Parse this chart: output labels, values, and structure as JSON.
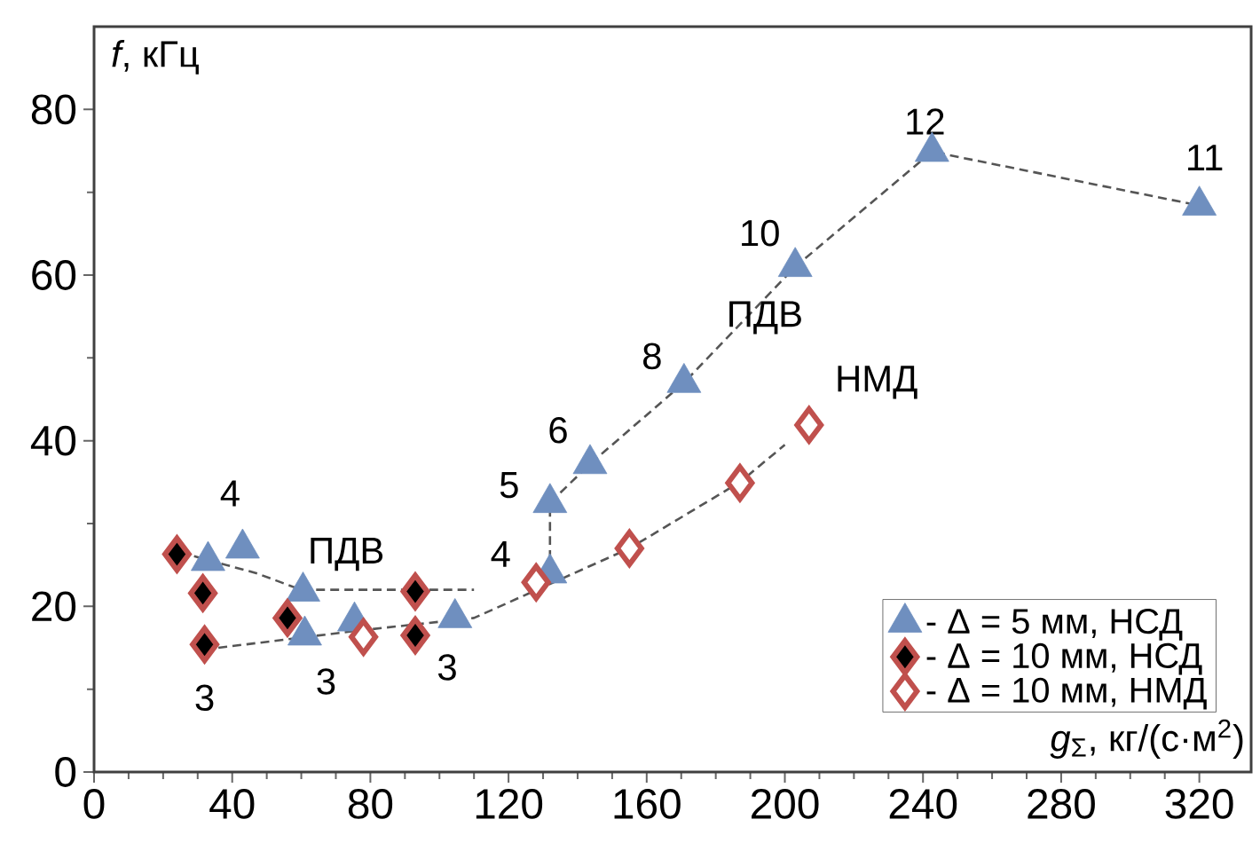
{
  "chart_data": {
    "type": "scatter",
    "xlabel": "*g*$_{Σ}$, кг/(с·м$^{2}$)",
    "ylabel": "*f*, кГц",
    "xlim": [
      0,
      335
    ],
    "ylim": [
      0,
      90
    ],
    "xticks": [
      0,
      40,
      80,
      120,
      160,
      200,
      240,
      280,
      320
    ],
    "yticks": [
      0,
      20,
      40,
      60,
      80
    ],
    "grid": false,
    "legend": "bottom right",
    "series": [
      {
        "name": "- Δ = 5 мм, НСД",
        "marker": "triangle",
        "color": "#6f8fbf",
        "x": [
          33,
          43,
          60.5,
          61,
          75.4,
          104.5,
          132,
          132,
          143.6,
          170.8,
          203,
          242.6,
          320
        ],
        "values": [
          25.5,
          27,
          21.8,
          16.5,
          18.2,
          18.6,
          24,
          32.5,
          37.2,
          47,
          61,
          74.9,
          68.4
        ]
      },
      {
        "name": "- Δ = 10 мм, НСД",
        "marker": "diamond",
        "color": "#c0504d",
        "x": [
          24,
          31.5,
          32,
          56,
          93,
          93
        ],
        "values": [
          26.3,
          21.6,
          15.4,
          18.6,
          21.8,
          16.5
        ]
      },
      {
        "name": "- Δ = 10 мм, НМД",
        "marker": "diamond",
        "color": "#c0504d",
        "x": [
          78,
          128,
          155,
          187,
          207
        ],
        "values": [
          16.3,
          22.9,
          27,
          34.9,
          41.9
        ]
      },
      {
        "type": "line",
        "line_style": "dashed",
        "marker": "none",
        "color": "#555555",
        "x": [
          25,
          47,
          60,
          95,
          110
        ],
        "values": [
          26.5,
          24,
          22,
          22,
          22
        ]
      },
      {
        "type": "line",
        "line_style": "dashed",
        "marker": "none",
        "color": "#555555",
        "x": [
          36,
          75,
          110,
          155,
          187,
          200
        ],
        "values": [
          15,
          17,
          18.6,
          27,
          35,
          39.5
        ]
      },
      {
        "type": "line",
        "line_style": "dashed",
        "marker": "none",
        "color": "#555555",
        "x": [
          132,
          132,
          143.6,
          170.8,
          203,
          242.6,
          320
        ],
        "values": [
          24,
          32.5,
          37.2,
          47,
          61,
          74.9,
          68.4
        ]
      }
    ],
    "annotations": [
      {
        "text": "4",
        "x": 43,
        "y": 27
      },
      {
        "text": "ПДВ",
        "x": 73,
        "y": 22
      },
      {
        "text": "3",
        "x": 32,
        "y": 15.4
      },
      {
        "text": "3",
        "x": 61,
        "y": 16.5
      },
      {
        "text": "3",
        "x": 93,
        "y": 16.5
      },
      {
        "text": "4",
        "x": 128,
        "y": 22.9
      },
      {
        "text": "5",
        "x": 132,
        "y": 32.5
      },
      {
        "text": "6",
        "x": 143.6,
        "y": 37.2
      },
      {
        "text": "8",
        "x": 170.8,
        "y": 47
      },
      {
        "text": "ПДВ",
        "x": 187,
        "y": 54
      },
      {
        "text": "НМД",
        "x": 207,
        "y": 41.9
      },
      {
        "text": "10",
        "x": 203,
        "y": 61
      },
      {
        "text": "12",
        "x": 242.6,
        "y": 74.9
      },
      {
        "text": "11",
        "x": 320,
        "y": 68.4
      }
    ]
  }
}
